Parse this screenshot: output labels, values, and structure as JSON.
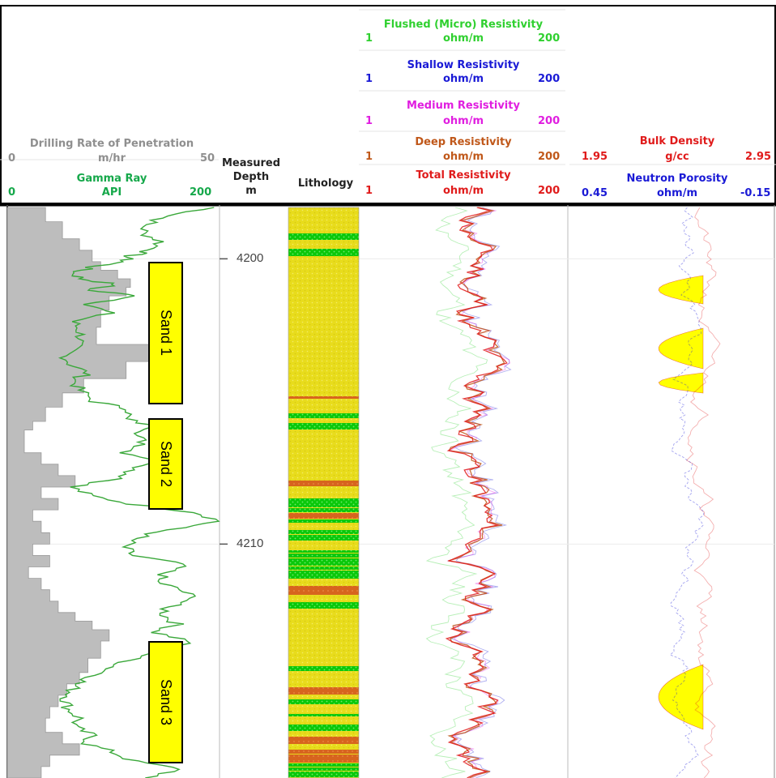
{
  "header": {
    "rop": {
      "title": "Drilling Rate of Penetration",
      "unit": "m/hr",
      "min": "0",
      "max": "50",
      "color": "#8f8f8f"
    },
    "gamma": {
      "title": "Gamma Ray",
      "unit": "API",
      "min": "0",
      "max": "200",
      "color": "#15a84a"
    },
    "depth": {
      "line1": "Measured",
      "line2": "Depth",
      "line3": "m"
    },
    "lithology": {
      "title": "Lithology"
    },
    "flushed": {
      "title": "Flushed (Micro) Resistivity",
      "unit": "ohm/m",
      "min": "1",
      "max": "200",
      "color": "#2fd02f"
    },
    "shallow": {
      "title": "Shallow Resistivity",
      "unit": "ohm/m",
      "min": "1",
      "max": "200",
      "color": "#1a1ad6"
    },
    "medium": {
      "title": "Medium Resistivity",
      "unit": "ohm/m",
      "min": "1",
      "max": "200",
      "color": "#e01ee0"
    },
    "deep": {
      "title": "Deep Resistivity",
      "unit": "ohm/m",
      "min": "1",
      "max": "200",
      "color": "#c0581a"
    },
    "total": {
      "title": "Total Resistivity",
      "unit": "ohm/m",
      "min": "1",
      "max": "200",
      "color": "#e01b1b"
    },
    "density": {
      "title": "Bulk Density",
      "unit": "g/cc",
      "min": "1.95",
      "max": "2.95",
      "color": "#e01b1b"
    },
    "neutron": {
      "title": "Neutron Porosity",
      "unit": "ohm/m",
      "min": "0.45",
      "max": "-0.15",
      "color": "#1a1ad6"
    }
  },
  "sands": [
    {
      "label": "Sand 1",
      "top": 4200.1,
      "base": 4205.1
    },
    {
      "label": "Sand 2",
      "top": 4205.6,
      "base": 4208.8
    },
    {
      "label": "Sand 3",
      "top": 4213.4,
      "base": 4217.7
    }
  ],
  "chart_data": {
    "type": "line",
    "depth_range": [
      4198.2,
      4218.2
    ],
    "depth_ticks": [
      4200,
      4210
    ],
    "depth_unit": "m",
    "rop": {
      "depth": [
        4198.2,
        4198.7,
        4199.3,
        4199.7,
        4200.1,
        4200.4,
        4200.7,
        4201.0,
        4201.3,
        4201.8,
        4202.4,
        4203.0,
        4203.6,
        4204.2,
        4204.7,
        4205.2,
        4205.7,
        4206.0,
        4206.4,
        4206.8,
        4207.2,
        4207.6,
        4208.0,
        4208.4,
        4208.8,
        4209.2,
        4209.6,
        4210.0,
        4210.4,
        4210.8,
        4211.2,
        4211.6,
        4212.0,
        4212.4,
        4212.7,
        4213.0,
        4213.4,
        4214.0,
        4214.5,
        4214.9,
        4215.3,
        4215.7,
        4216.1,
        4216.6,
        4217.0,
        4217.4,
        4217.8,
        4218.2
      ],
      "values": [
        9,
        13,
        17,
        20,
        22,
        26,
        29,
        28,
        24,
        22,
        21,
        38,
        28,
        18,
        13,
        9,
        6,
        4,
        4,
        8,
        12,
        16,
        8,
        12,
        6,
        8,
        10,
        6,
        10,
        5,
        8,
        10,
        12,
        16,
        20,
        24,
        22,
        19,
        17,
        14,
        12,
        10,
        9,
        13,
        17,
        10,
        8,
        5
      ]
    },
    "gamma": {
      "depth": [
        4198.2,
        4198.5,
        4198.8,
        4199.1,
        4199.4,
        4199.7,
        4199.9,
        4200.1,
        4200.3,
        4200.5,
        4200.7,
        4200.9,
        4201.1,
        4201.3,
        4201.6,
        4201.9,
        4202.2,
        4202.5,
        4202.8,
        4203.1,
        4203.4,
        4203.7,
        4204.0,
        4204.3,
        4204.6,
        4205.0,
        4205.3,
        4205.6,
        4205.9,
        4206.2,
        4206.5,
        4206.8,
        4207.1,
        4207.4,
        4207.7,
        4208.0,
        4208.3,
        4208.6,
        4208.9,
        4209.2,
        4209.5,
        4209.8,
        4210.1,
        4210.4,
        4210.7,
        4211.0,
        4211.3,
        4211.6,
        4211.9,
        4212.2,
        4212.5,
        4212.8,
        4213.1,
        4213.4,
        4213.7,
        4214.0,
        4214.3,
        4214.6,
        4214.9,
        4215.2,
        4215.5,
        4215.8,
        4216.1,
        4216.4,
        4216.7,
        4217.0,
        4217.3,
        4217.6,
        4217.9,
        4218.2
      ],
      "values": [
        195,
        152,
        130,
        128,
        145,
        136,
        115,
        110,
        78,
        62,
        70,
        102,
        75,
        125,
        78,
        95,
        62,
        68,
        70,
        62,
        55,
        60,
        75,
        63,
        68,
        82,
        118,
        110,
        140,
        122,
        130,
        112,
        146,
        118,
        108,
        60,
        78,
        118,
        180,
        200,
        150,
        120,
        110,
        118,
        165,
        150,
        140,
        162,
        178,
        150,
        148,
        160,
        140,
        172,
        150,
        120,
        100,
        85,
        65,
        60,
        55,
        58,
        68,
        62,
        80,
        75,
        100,
        118,
        165,
        130
      ]
    }
  }
}
